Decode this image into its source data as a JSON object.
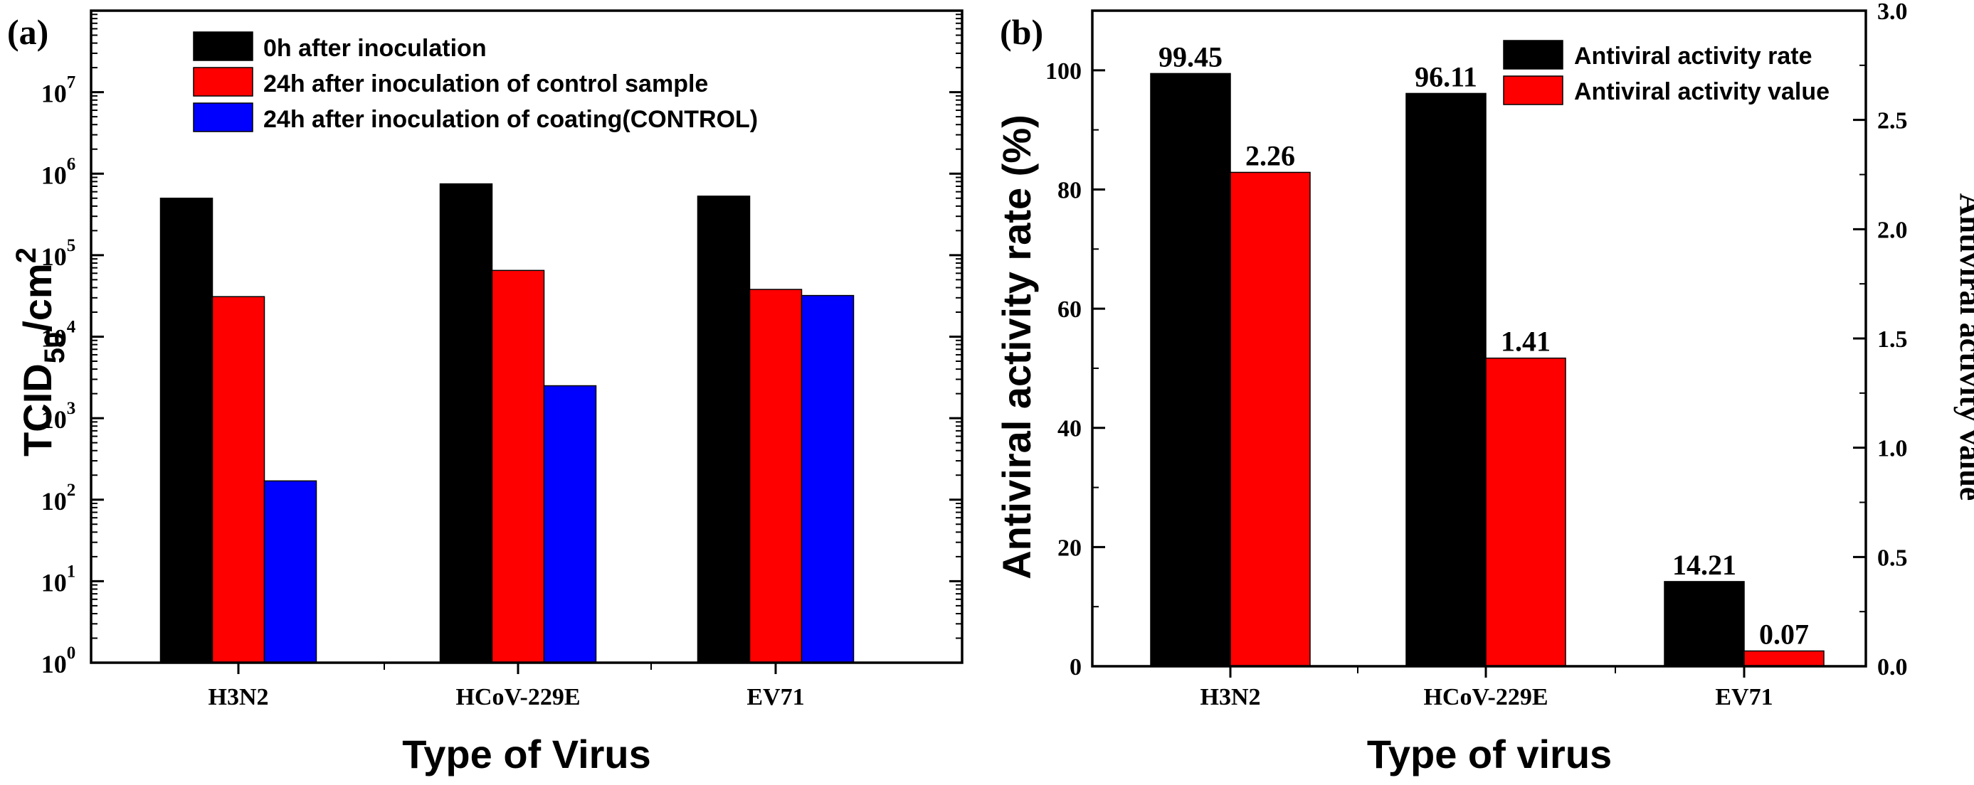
{
  "chart_data": [
    {
      "panel": "(a)",
      "type": "bar",
      "scale": "log",
      "categories": [
        "H3N2",
        "HCoV-229E",
        "EV71"
      ],
      "series": [
        {
          "name": "0h after inoculation",
          "color": "#000000",
          "values": [
            500000,
            750000,
            530000
          ]
        },
        {
          "name": "24h after inoculation of control sample",
          "color": "#ff0000",
          "values": [
            31000,
            65000,
            38000
          ]
        },
        {
          "name": "24h after inoculation of coating(CONTROL)",
          "color": "#0000ff",
          "values": [
            170,
            2500,
            32000
          ]
        }
      ],
      "xlabel": "Type of Virus",
      "ylabel": {
        "base": "TCID",
        "sub": "50",
        "mid": "/cm",
        "sup": "2"
      },
      "ylim": [
        1,
        100000000
      ],
      "yticks": [
        {
          "base": "10",
          "exp": "0",
          "value": 1
        },
        {
          "base": "10",
          "exp": "1",
          "value": 10
        },
        {
          "base": "10",
          "exp": "2",
          "value": 100
        },
        {
          "base": "10",
          "exp": "3",
          "value": 1000
        },
        {
          "base": "10",
          "exp": "4",
          "value": 10000
        },
        {
          "base": "10",
          "exp": "5",
          "value": 100000
        },
        {
          "base": "10",
          "exp": "6",
          "value": 1000000
        },
        {
          "base": "10",
          "exp": "7",
          "value": 10000000
        }
      ],
      "legend_position": "top-left"
    },
    {
      "panel": "(b)",
      "type": "bar",
      "categories": [
        "H3N2",
        "HCoV-229E",
        "EV71"
      ],
      "series": [
        {
          "name": "Antiviral activity rate",
          "color": "#000000",
          "axis": "left",
          "values": [
            99.45,
            96.11,
            14.21
          ],
          "labels": [
            "99.45",
            "96.11",
            "14.21"
          ]
        },
        {
          "name": "Antiviral activity value",
          "color": "#ff0000",
          "axis": "right",
          "values": [
            2.26,
            1.41,
            0.07
          ],
          "labels": [
            "2.26",
            "1.41",
            "0.07"
          ]
        }
      ],
      "xlabel": "Type of virus",
      "ylabel": "Antiviral activity rate (%)",
      "y2label": "Antiviral activity value",
      "ylim": [
        0,
        110
      ],
      "y2lim": [
        0,
        3.0
      ],
      "yticks": [
        "0",
        "20",
        "40",
        "60",
        "80",
        "100"
      ],
      "yticks_values": [
        0,
        20,
        40,
        60,
        80,
        100
      ],
      "y2ticks": [
        "0.0",
        "0.5",
        "1.0",
        "1.5",
        "2.0",
        "2.5",
        "3.0"
      ],
      "y2ticks_values": [
        0,
        0.5,
        1.0,
        1.5,
        2.0,
        2.5,
        3.0
      ],
      "legend_position": "top-right"
    }
  ]
}
